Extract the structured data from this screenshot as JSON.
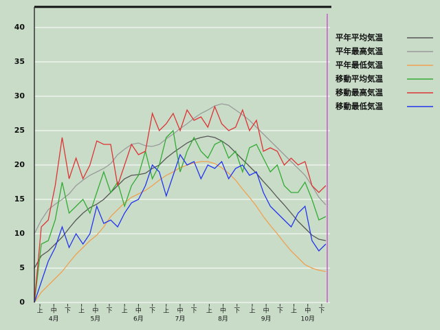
{
  "chart_data": {
    "type": "line",
    "x": [
      0,
      5,
      10,
      15,
      20,
      25,
      30,
      35,
      40,
      45,
      50,
      55,
      60,
      65,
      70,
      75,
      80,
      85,
      90,
      95,
      100,
      105,
      110,
      115,
      120,
      125,
      130,
      135,
      140,
      145,
      150,
      155,
      160,
      165,
      170,
      175,
      180,
      185,
      190,
      195,
      200,
      205,
      210
    ],
    "xlim": [
      0,
      213
    ],
    "ylim": [
      0,
      43
    ],
    "yticks": [
      0,
      5,
      10,
      15,
      20,
      25,
      30,
      35,
      40
    ],
    "grid": true,
    "xticks": [
      {
        "value": 4,
        "label": "上"
      },
      {
        "value": 14,
        "label": "中"
      },
      {
        "value": 24,
        "label": "下"
      },
      {
        "value": 34,
        "label": "上"
      },
      {
        "value": 44,
        "label": "中"
      },
      {
        "value": 54,
        "label": "下"
      },
      {
        "value": 65,
        "label": "上"
      },
      {
        "value": 75,
        "label": "中"
      },
      {
        "value": 85,
        "label": "下"
      },
      {
        "value": 95,
        "label": "上"
      },
      {
        "value": 105,
        "label": "中"
      },
      {
        "value": 115,
        "label": "下"
      },
      {
        "value": 126,
        "label": "上"
      },
      {
        "value": 136,
        "label": "中"
      },
      {
        "value": 146,
        "label": "下"
      },
      {
        "value": 157,
        "label": "上"
      },
      {
        "value": 167,
        "label": "中"
      },
      {
        "value": 177,
        "label": "下"
      },
      {
        "value": 187,
        "label": "上"
      },
      {
        "value": 197,
        "label": "中"
      },
      {
        "value": 207,
        "label": "下"
      }
    ],
    "month_labels": [
      {
        "value": 14,
        "label": "4月"
      },
      {
        "value": 44,
        "label": "5月"
      },
      {
        "value": 75,
        "label": "6月"
      },
      {
        "value": 105,
        "label": "7月"
      },
      {
        "value": 136,
        "label": "8月"
      },
      {
        "value": 167,
        "label": "9月"
      },
      {
        "value": 197,
        "label": "10月"
      }
    ],
    "marker_line": {
      "x": 211,
      "color": "#cc55cc"
    },
    "series": [
      {
        "name": "平年平均気温",
        "color": "#555555",
        "values": [
          5,
          6.8,
          7.5,
          8.5,
          9.5,
          10.8,
          12,
          13,
          13.8,
          14.3,
          15,
          16,
          17,
          18,
          18.5,
          18.6,
          18.8,
          19.5,
          20,
          21,
          21.8,
          22.5,
          23.2,
          23.7,
          24,
          24.2,
          24,
          23.5,
          22.8,
          21.8,
          20.8,
          19.8,
          18.8,
          17.6,
          16.5,
          15.3,
          14.2,
          13,
          11.8,
          10.8,
          9.8,
          9.2,
          9
        ]
      },
      {
        "name": "平年最高気温",
        "color": "#9a9a9a",
        "values": [
          10,
          12,
          13.5,
          14.3,
          15,
          15.8,
          17,
          17.8,
          18.5,
          19,
          19.5,
          20.2,
          21.5,
          22.3,
          23,
          23.2,
          22.8,
          22.7,
          23,
          23.8,
          24.5,
          25.3,
          26,
          26.8,
          27.5,
          28,
          28.6,
          28.9,
          28.7,
          28,
          27.3,
          26.5,
          25.5,
          24.5,
          23.5,
          22.5,
          21.5,
          20.5,
          19.5,
          18.5,
          17,
          15.3,
          14.2
        ]
      },
      {
        "name": "平年最低気温",
        "color": "#f0a050",
        "values": [
          0,
          1.5,
          2.5,
          3.5,
          4.5,
          5.8,
          7,
          8,
          9,
          9.8,
          11,
          12.5,
          13.5,
          14.5,
          15.3,
          15.8,
          16.3,
          17,
          17.8,
          18.5,
          19,
          19.6,
          20,
          20.3,
          20.5,
          20.5,
          20.2,
          19.6,
          18.8,
          17.8,
          16.5,
          15.3,
          14,
          12.5,
          11.2,
          10,
          8.7,
          7.5,
          6.5,
          5.5,
          5,
          4.7,
          4.5
        ]
      },
      {
        "name": "移動平均気温",
        "color": "#33aa33",
        "values": [
          0,
          8.5,
          9,
          12,
          17.5,
          13,
          14,
          15,
          13,
          16,
          19,
          16,
          17.5,
          14,
          17,
          18.5,
          22,
          18,
          20,
          24,
          25,
          19,
          22,
          24,
          22,
          21,
          23,
          23.5,
          21,
          22,
          19,
          22.5,
          23,
          21,
          19,
          20,
          17,
          16,
          16,
          17.5,
          15,
          12,
          12.5
        ]
      },
      {
        "name": "移動最高気温",
        "color": "#dd3333",
        "values": [
          0,
          11,
          12,
          17,
          24,
          18,
          21,
          18,
          20,
          23.5,
          23,
          23,
          17,
          20,
          23,
          21.5,
          22,
          27.5,
          25,
          26,
          27.5,
          25,
          28,
          26.5,
          27,
          25.5,
          28.5,
          26,
          25,
          25.5,
          28,
          25,
          26.5,
          22,
          22.5,
          22,
          20,
          21,
          20,
          20.5,
          17,
          16,
          17
        ]
      },
      {
        "name": "移動最低気温",
        "color": "#2233ee",
        "values": [
          0,
          3,
          6,
          8,
          11,
          8,
          10,
          8.5,
          10,
          14,
          11.5,
          12,
          11,
          13,
          14.5,
          15,
          17,
          20,
          19,
          15.5,
          18.5,
          21.5,
          20,
          20.5,
          18,
          20,
          19.5,
          20.5,
          18,
          19.5,
          20,
          18.5,
          19,
          16,
          14,
          13,
          12,
          11,
          13,
          14,
          9,
          7.5,
          8.5
        ]
      }
    ]
  }
}
